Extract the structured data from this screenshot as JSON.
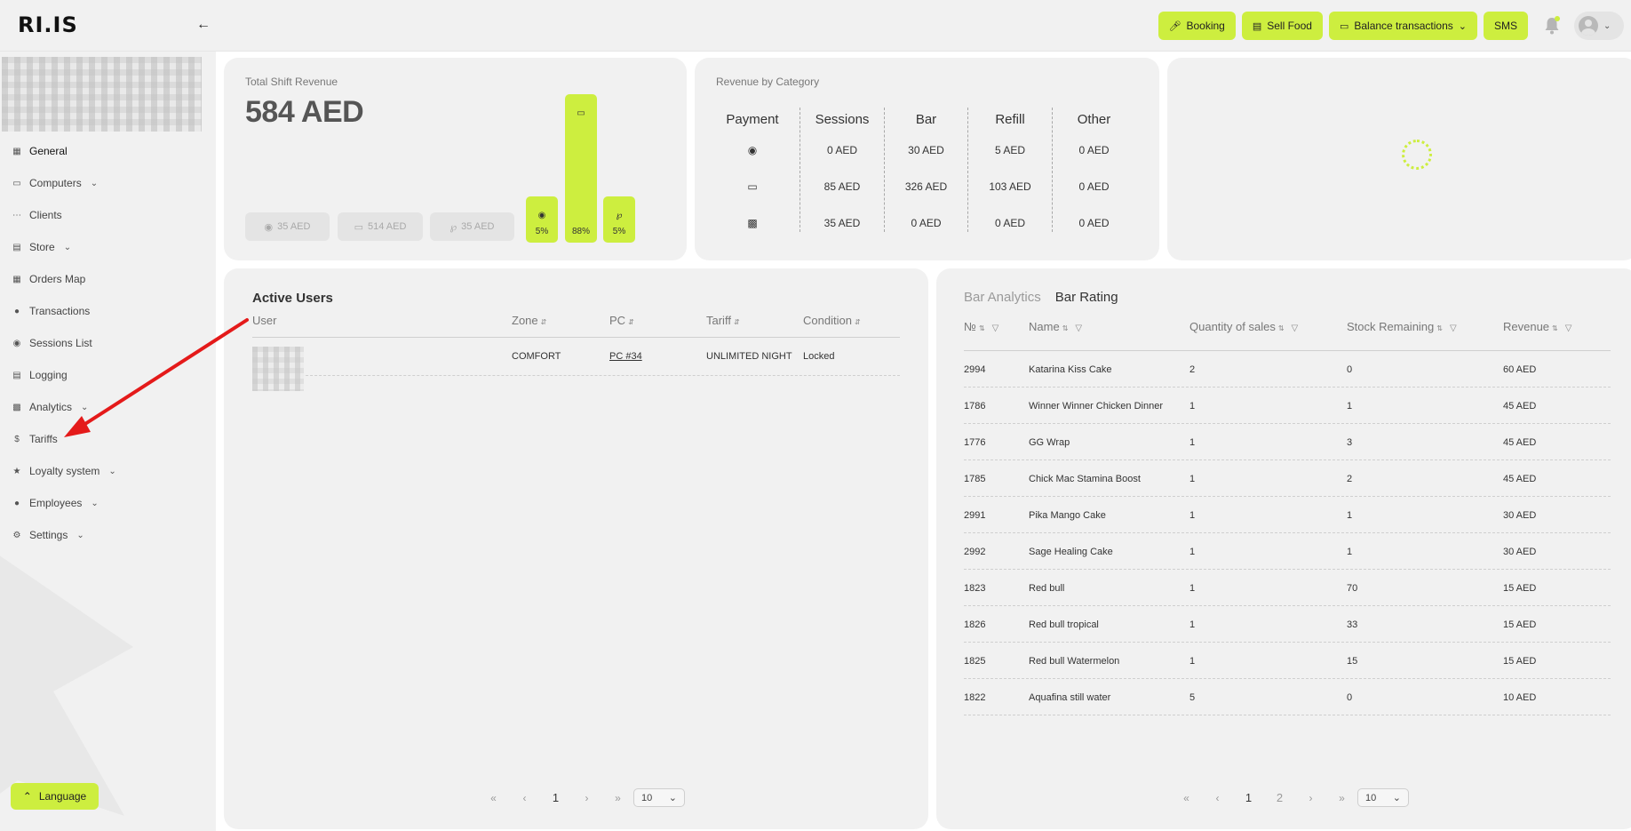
{
  "header": {
    "logo": "RI.IS",
    "actions": [
      {
        "label": "Booking",
        "icon": "mic-icon"
      },
      {
        "label": "Sell Food",
        "icon": "basket-icon"
      },
      {
        "label": "Balance transactions",
        "icon": "wallet-icon"
      },
      {
        "label": "SMS"
      }
    ]
  },
  "sidebar": {
    "items": [
      {
        "label": "General",
        "icon": "grid-icon"
      },
      {
        "label": "Computers",
        "icon": "laptop-icon"
      },
      {
        "label": "Clients",
        "icon": "users-icon"
      },
      {
        "label": "Store",
        "icon": "store-icon"
      },
      {
        "label": "Orders Map",
        "icon": "map-icon"
      },
      {
        "label": "Transactions",
        "icon": "coin-icon"
      },
      {
        "label": "Sessions List",
        "icon": "database-icon"
      },
      {
        "label": "Logging",
        "icon": "document-icon"
      },
      {
        "label": "Analytics",
        "icon": "chart-icon"
      },
      {
        "label": "Tariffs",
        "icon": "dollar-icon"
      },
      {
        "label": "Loyalty system",
        "icon": "star-icon"
      },
      {
        "label": "Employees",
        "icon": "person-icon"
      },
      {
        "label": "Settings",
        "icon": "gear-icon"
      }
    ],
    "language_label": "Language"
  },
  "revenue": {
    "title": "Total Shift Revenue",
    "total": "584 AED",
    "chips": [
      "35 AED",
      "514 AED",
      "35 AED"
    ],
    "bars": [
      {
        "percent": 5,
        "label": "5%"
      },
      {
        "percent": 88,
        "label": "88%"
      },
      {
        "percent": 5,
        "label": "5%"
      }
    ]
  },
  "category": {
    "title": "Revenue by Category",
    "headers": [
      "Payment",
      "Sessions",
      "Bar",
      "Refill",
      "Other"
    ],
    "rows": [
      {
        "icon": "cash-icon",
        "values": [
          "0 AED",
          "30 AED",
          "5 AED",
          "0 AED"
        ]
      },
      {
        "icon": "card-icon",
        "values": [
          "85 AED",
          "326 AED",
          "103 AED",
          "0 AED"
        ]
      },
      {
        "icon": "bonus-card-icon",
        "values": [
          "35 AED",
          "0 AED",
          "0 AED",
          "0 AED"
        ]
      }
    ]
  },
  "active_users": {
    "title": "Active Users",
    "columns": [
      "User",
      "Zone",
      "PC",
      "Tariff",
      "Condition"
    ],
    "rows": [
      {
        "zone": "COMFORT",
        "pc": "PC #34",
        "tariff": "UNLIMITED NIGHT",
        "condition": "Locked"
      }
    ],
    "pager": {
      "first": "«",
      "prev": "‹",
      "page": "1",
      "next": "›",
      "last": "»",
      "per_page": "10"
    }
  },
  "bar": {
    "tabs": [
      "Bar Analytics",
      "Bar Rating"
    ],
    "active_tab": "Bar Rating",
    "columns": [
      "№",
      "Name",
      "Quantity of sales",
      "Stock Remaining",
      "Revenue"
    ],
    "rows": [
      {
        "id": "2994",
        "name": "Katarina Kiss Cake",
        "qty": "2",
        "stock": "0",
        "revenue": "60 AED"
      },
      {
        "id": "1786",
        "name": "Winner Winner Chicken Dinner",
        "qty": "1",
        "stock": "1",
        "revenue": "45 AED"
      },
      {
        "id": "1776",
        "name": "GG Wrap",
        "qty": "1",
        "stock": "3",
        "revenue": "45 AED"
      },
      {
        "id": "1785",
        "name": "Chick Mac Stamina Boost",
        "qty": "1",
        "stock": "2",
        "revenue": "45 AED"
      },
      {
        "id": "2991",
        "name": "Pika Mango Cake",
        "qty": "1",
        "stock": "1",
        "revenue": "30 AED"
      },
      {
        "id": "2992",
        "name": "Sage Healing Cake",
        "qty": "1",
        "stock": "1",
        "revenue": "30 AED"
      },
      {
        "id": "1823",
        "name": "Red bull",
        "qty": "1",
        "stock": "70",
        "revenue": "15 AED"
      },
      {
        "id": "1826",
        "name": "Red bull tropical",
        "qty": "1",
        "stock": "33",
        "revenue": "15 AED"
      },
      {
        "id": "1825",
        "name": "Red bull Watermelon",
        "qty": "1",
        "stock": "15",
        "revenue": "15 AED"
      },
      {
        "id": "1822",
        "name": "Aquafina still water",
        "qty": "5",
        "stock": "0",
        "revenue": "10 AED"
      }
    ],
    "pager": {
      "first": "«",
      "prev": "‹",
      "pages": [
        "1",
        "2"
      ],
      "next": "›",
      "last": "»",
      "per_page": "10"
    }
  },
  "colors": {
    "accent": "#cdee3f",
    "annotation_arrow": "#e41a1a"
  }
}
